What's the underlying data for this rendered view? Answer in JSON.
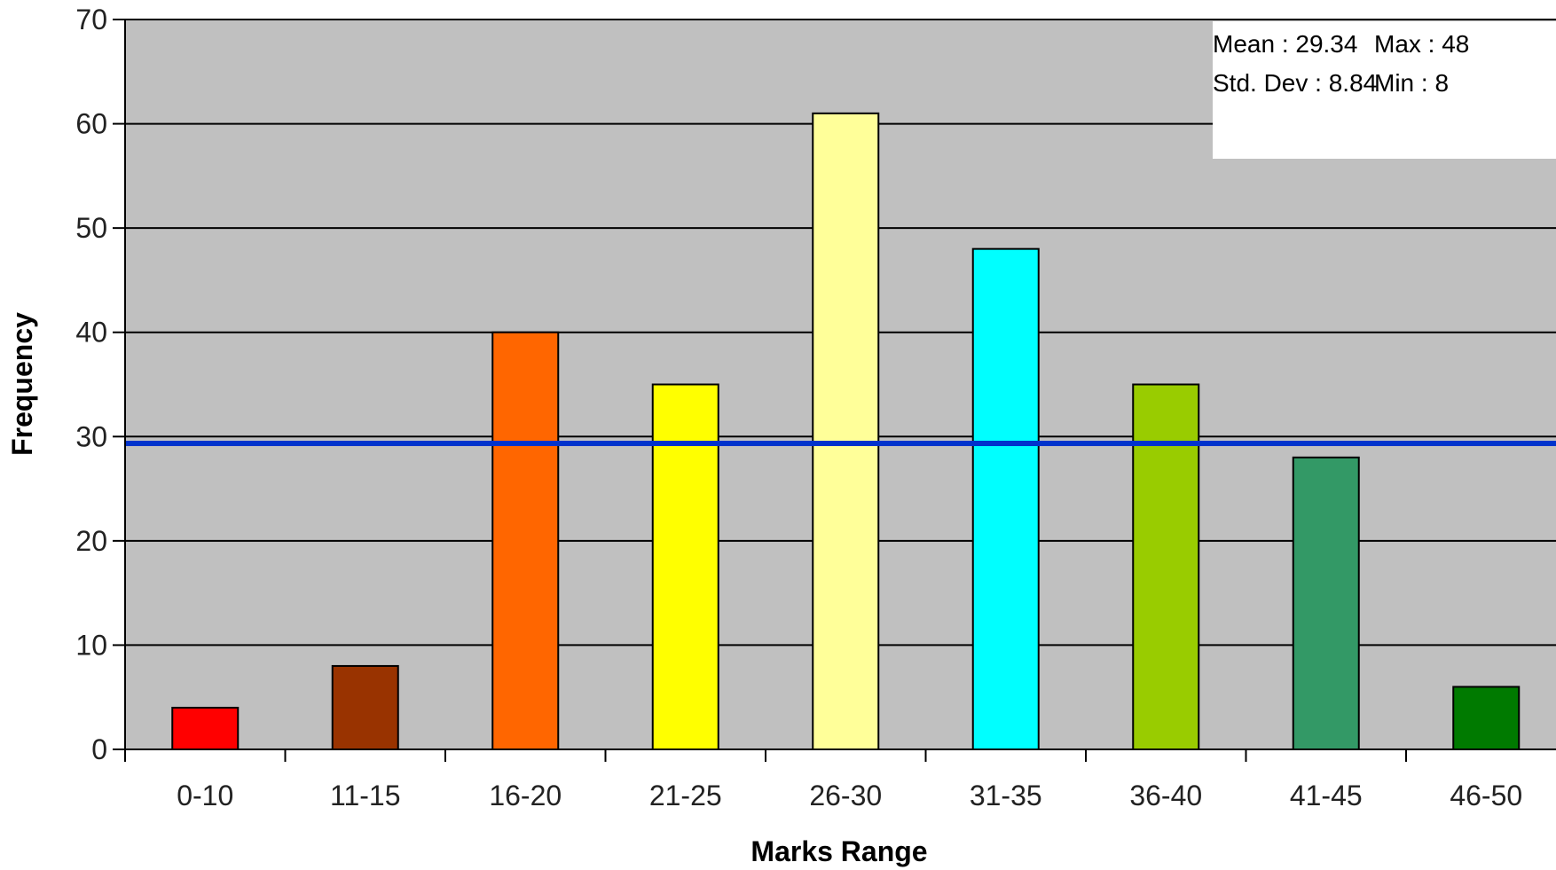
{
  "chart_data": {
    "type": "bar",
    "categories": [
      "0-10",
      "11-15",
      "16-20",
      "21-25",
      "26-30",
      "31-35",
      "36-40",
      "41-45",
      "46-50"
    ],
    "values": [
      4,
      8,
      40,
      35,
      61,
      48,
      35,
      28,
      6
    ],
    "colors": [
      "#ff0000",
      "#993300",
      "#ff6600",
      "#ffff00",
      "#ffff99",
      "#00ffff",
      "#99cc00",
      "#339966",
      "#007a00"
    ],
    "xlabel": "Marks Range",
    "ylabel": "Frequency",
    "ylim": [
      0,
      70
    ],
    "yticks": [
      0,
      10,
      20,
      30,
      40,
      50,
      60,
      70
    ],
    "grid": true,
    "background": "#c0c0c0",
    "mean_line": {
      "value": 29.34,
      "color": "#0033cc"
    },
    "stats_box": {
      "mean": "Mean : 29.34",
      "max": "Max : 48",
      "std_dev": "Std. Dev : 8.84",
      "min": "Min : 8"
    }
  }
}
